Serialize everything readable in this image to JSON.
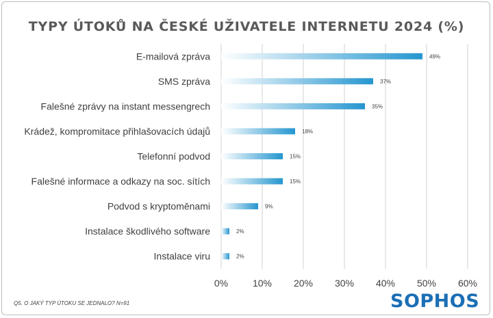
{
  "chart_data": {
    "type": "bar",
    "orientation": "horizontal",
    "title": "TYPY ÚTOKŮ NA ČESKÉ UŽIVATELE INTERNETU 2024 (%)",
    "categories": [
      "E-mailová zpráva",
      "SMS zpráva",
      "Falešné zprávy na instant messengrech",
      "Krádež, kompromitace přihlašovacích údajů",
      "Telefonní podvod",
      "Falešné informace a odkazy na soc. sítích",
      "Podvod s kryptoměnami",
      "Instalace škodlivého software",
      "Instalace viru"
    ],
    "values": [
      49,
      37,
      35,
      18,
      15,
      15,
      9,
      2,
      2
    ],
    "data_labels": [
      "49%",
      "37%",
      "35%",
      "18%",
      "15%",
      "15%",
      "9%",
      "2%",
      "2%"
    ],
    "xlim": [
      0,
      60
    ],
    "xticks": [
      0,
      10,
      20,
      30,
      40,
      50,
      60
    ],
    "xtick_labels": [
      "0%",
      "10%",
      "20%",
      "30%",
      "40%",
      "50%",
      "60%"
    ],
    "grid": true,
    "bar_color_start": "#ffffff",
    "bar_color_end": "#2596cf"
  },
  "footnote": "Q5. O JAKÝ TYP ÚTOKU SE JEDNALO? N=91",
  "logo": "SOPHOS",
  "colors": {
    "title": "#595959",
    "logo": "#1b6fb5",
    "gridline": "#d0d0d0"
  }
}
